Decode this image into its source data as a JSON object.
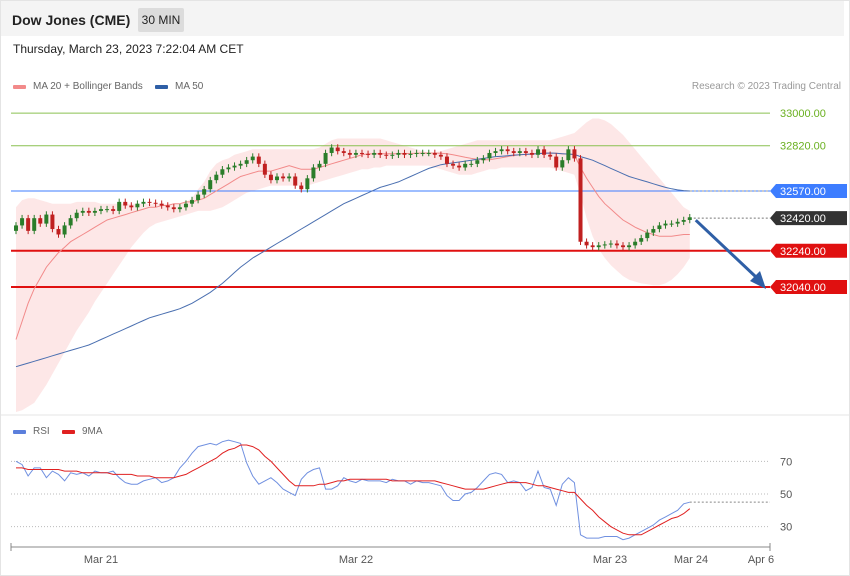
{
  "header": {
    "title": "Dow Jones (CME)",
    "timeframe": "30 MIN",
    "datetime": "Thursday, March 23, 2023 7:22:04 AM CET"
  },
  "credit": "Research © 2023 Trading Central",
  "legend": {
    "main": [
      {
        "label": "MA 20 + Bollinger Bands",
        "color": "#f28a8a"
      },
      {
        "label": "MA 50",
        "color": "#2f5fa6"
      }
    ],
    "rsi": [
      {
        "label": "RSI",
        "color": "#5b7fdc"
      },
      {
        "label": "9MA",
        "color": "#e02020"
      }
    ]
  },
  "colors": {
    "up": "#2a7d2a",
    "down": "#c02020",
    "band": "#fde3e3",
    "ma20": "#f28a8a",
    "ma50": "#4a6fb0",
    "support": "#e01010",
    "pivot": "#3d7dff",
    "target": "#8ac050",
    "rsi": "#7090e0",
    "rsi_ma": "#e02020"
  },
  "chart_data": [
    {
      "type": "line",
      "title": "",
      "x_labels": [
        "Mar 21",
        "Mar 22",
        "Mar 23",
        "Mar 24",
        "Apr 6"
      ],
      "ylim": [
        31350,
        33100
      ],
      "levels": [
        {
          "value": 33000,
          "label": "33000.00",
          "kind": "target"
        },
        {
          "value": 32820,
          "label": "32820.00",
          "kind": "target"
        },
        {
          "value": 32570,
          "label": "32570.00",
          "kind": "pivot"
        },
        {
          "value": 32420,
          "label": "32420.00",
          "kind": "last"
        },
        {
          "value": 32240,
          "label": "32240.00",
          "kind": "support"
        },
        {
          "value": 32040,
          "label": "32040.00",
          "kind": "support"
        }
      ],
      "last_price": 32420,
      "forecast_arrow": {
        "from": 32420,
        "to": 32040
      },
      "closes": [
        32380,
        32420,
        32350,
        32420,
        32390,
        32440,
        32360,
        32330,
        32380,
        32420,
        32450,
        32460,
        32450,
        32460,
        32470,
        32470,
        32460,
        32510,
        32490,
        32480,
        32500,
        32510,
        32505,
        32500,
        32490,
        32480,
        32470,
        32480,
        32500,
        32520,
        32550,
        32580,
        32630,
        32660,
        32690,
        32700,
        32710,
        32720,
        32740,
        32760,
        32720,
        32660,
        32630,
        32650,
        32640,
        32650,
        32600,
        32580,
        32640,
        32700,
        32720,
        32780,
        32810,
        32790,
        32780,
        32770,
        32780,
        32775,
        32770,
        32780,
        32770,
        32765,
        32770,
        32780,
        32770,
        32775,
        32780,
        32780,
        32780,
        32770,
        32760,
        32720,
        32710,
        32700,
        32720,
        32720,
        32740,
        32750,
        32780,
        32790,
        32800,
        32790,
        32780,
        32790,
        32780,
        32770,
        32800,
        32770,
        32760,
        32700,
        32740,
        32800,
        32750,
        32290,
        32270,
        32260,
        32270,
        32275,
        32280,
        32270,
        32260,
        32270,
        32290,
        32310,
        32340,
        32360,
        32380,
        32390,
        32390,
        32400,
        32410,
        32425
      ],
      "ma20": [
        31750,
        31850,
        31950,
        32030,
        32090,
        32150,
        32190,
        32230,
        32260,
        32290,
        32310,
        32330,
        32350,
        32370,
        32390,
        32410,
        32420,
        32430,
        32440,
        32450,
        32460,
        32470,
        32480,
        32480,
        32490,
        32490,
        32500,
        32500,
        32510,
        32510,
        32520,
        32530,
        32550,
        32570,
        32590,
        32610,
        32630,
        32650,
        32660,
        32670,
        32680,
        32680,
        32680,
        32690,
        32700,
        32710,
        32700,
        32690,
        32690,
        32690,
        32700,
        32710,
        32720,
        32730,
        32740,
        32750,
        32760,
        32770,
        32775,
        32775,
        32776,
        32776,
        32776,
        32776,
        32777,
        32777,
        32778,
        32779,
        32780,
        32779,
        32778,
        32776,
        32770,
        32763,
        32756,
        32750,
        32745,
        32742,
        32743,
        32748,
        32754,
        32760,
        32766,
        32770,
        32773,
        32776,
        32778,
        32779,
        32778,
        32778,
        32775,
        32775,
        32770,
        32700,
        32640,
        32590,
        32540,
        32500,
        32470,
        32440,
        32410,
        32390,
        32370,
        32355,
        32340,
        32330,
        32320,
        32320,
        32320,
        32325,
        32330,
        32330
      ],
      "ma50": [
        31600,
        31610,
        31620,
        31630,
        31640,
        31650,
        31660,
        31670,
        31680,
        31690,
        31700,
        31710,
        31720,
        31735,
        31750,
        31765,
        31780,
        31795,
        31810,
        31825,
        31840,
        31855,
        31870,
        31880,
        31890,
        31900,
        31910,
        31920,
        31935,
        31950,
        31970,
        31990,
        32010,
        32035,
        32060,
        32090,
        32120,
        32150,
        32175,
        32200,
        32220,
        32240,
        32260,
        32280,
        32300,
        32320,
        32340,
        32360,
        32380,
        32400,
        32420,
        32440,
        32460,
        32480,
        32500,
        32515,
        32530,
        32545,
        32560,
        32575,
        32590,
        32600,
        32610,
        32620,
        32635,
        32650,
        32665,
        32680,
        32695,
        32705,
        32715,
        32720,
        32725,
        32730,
        32735,
        32740,
        32745,
        32750,
        32755,
        32760,
        32762,
        32765,
        32768,
        32770,
        32772,
        32774,
        32776,
        32778,
        32780,
        32778,
        32776,
        32774,
        32772,
        32760,
        32750,
        32740,
        32725,
        32710,
        32695,
        32680,
        32665,
        32650,
        32640,
        32630,
        32620,
        32610,
        32600,
        32590,
        32582,
        32576,
        32572,
        32570
      ],
      "bb_upper": [
        32480,
        32520,
        32530,
        32530,
        32520,
        32510,
        32500,
        32500,
        32500,
        32500,
        32510,
        32510,
        32510,
        32510,
        32500,
        32500,
        32500,
        32500,
        32500,
        32500,
        32500,
        32500,
        32500,
        32500,
        32500,
        32500,
        32500,
        32500,
        32510,
        32530,
        32580,
        32620,
        32680,
        32720,
        32740,
        32750,
        32770,
        32780,
        32790,
        32800,
        32800,
        32800,
        32800,
        32800,
        32800,
        32800,
        32800,
        32800,
        32800,
        32800,
        32810,
        32830,
        32850,
        32860,
        32860,
        32860,
        32860,
        32860,
        32860,
        32860,
        32860,
        32850,
        32840,
        32830,
        32820,
        32810,
        32800,
        32790,
        32780,
        32785,
        32790,
        32800,
        32810,
        32820,
        32830,
        32840,
        32850,
        32850,
        32850,
        32850,
        32850,
        32850,
        32850,
        32850,
        32850,
        32850,
        32850,
        32850,
        32850,
        32860,
        32870,
        32880,
        32890,
        32920,
        32950,
        32970,
        32970,
        32960,
        32940,
        32910,
        32880,
        32840,
        32800,
        32760,
        32720,
        32680,
        32640,
        32600,
        32560,
        32520,
        32480,
        32460
      ],
      "bb_lower": [
        31350,
        31360,
        31380,
        31400,
        31450,
        31500,
        31560,
        31620,
        31680,
        31740,
        31800,
        31850,
        31900,
        31960,
        32010,
        32060,
        32110,
        32160,
        32210,
        32260,
        32300,
        32340,
        32370,
        32390,
        32400,
        32410,
        32420,
        32430,
        32440,
        32450,
        32460,
        32460,
        32460,
        32470,
        32480,
        32500,
        32520,
        32540,
        32560,
        32570,
        32580,
        32590,
        32600,
        32600,
        32600,
        32600,
        32600,
        32600,
        32600,
        32610,
        32620,
        32630,
        32640,
        32650,
        32660,
        32670,
        32680,
        32690,
        32690,
        32700,
        32700,
        32710,
        32710,
        32710,
        32710,
        32710,
        32710,
        32710,
        32710,
        32700,
        32690,
        32680,
        32670,
        32660,
        32660,
        32660,
        32670,
        32680,
        32690,
        32690,
        32700,
        32700,
        32700,
        32700,
        32700,
        32700,
        32700,
        32700,
        32700,
        32690,
        32680,
        32670,
        32660,
        32550,
        32420,
        32320,
        32250,
        32200,
        32160,
        32130,
        32100,
        32080,
        32070,
        32060,
        32055,
        32050,
        32050,
        32060,
        32080,
        32110,
        32150,
        32200
      ]
    },
    {
      "type": "line",
      "title": "",
      "ylim": [
        20,
        80
      ],
      "yticks": [
        30,
        50,
        70
      ],
      "ytick_labels": [
        "30",
        "50",
        "70"
      ],
      "series": [
        {
          "name": "RSI",
          "values": [
            70,
            68,
            61,
            66,
            66,
            60,
            64,
            62,
            58,
            63,
            62,
            63,
            61,
            64,
            63,
            63,
            64,
            60,
            57,
            56,
            56,
            58,
            59,
            60,
            57,
            58,
            60,
            66,
            70,
            75,
            79,
            80,
            81,
            80,
            82,
            83,
            82,
            81,
            69,
            61,
            56,
            58,
            60,
            57,
            53,
            51,
            49,
            59,
            63,
            65,
            66,
            53,
            53,
            55,
            60,
            58,
            57,
            59,
            58,
            58,
            58,
            57,
            59,
            58,
            58,
            56,
            58,
            57,
            57,
            56,
            55,
            49,
            46,
            46,
            50,
            51,
            54,
            58,
            62,
            63,
            62,
            57,
            58,
            57,
            52,
            54,
            64,
            54,
            53,
            43,
            56,
            60,
            57,
            25,
            23,
            23,
            23,
            24,
            24,
            24,
            22,
            23,
            25,
            27,
            29,
            31,
            34,
            36,
            38,
            40,
            44,
            45
          ]
        },
        {
          "name": "9MA",
          "values": [
            66,
            66,
            65,
            65,
            65,
            65,
            65,
            65,
            64,
            64,
            64,
            63,
            63,
            63,
            63,
            63,
            62,
            62,
            62,
            62,
            61,
            61,
            61,
            60,
            60,
            60,
            60,
            61,
            62,
            64,
            66,
            68,
            70,
            72,
            75,
            77,
            78,
            80,
            80,
            79,
            77,
            73,
            70,
            66,
            62,
            58,
            55,
            55,
            55,
            55,
            56,
            56,
            57,
            58,
            58,
            59,
            59,
            59,
            59,
            59,
            59,
            59,
            58,
            58,
            58,
            58,
            58,
            58,
            58,
            58,
            57,
            56,
            55,
            54,
            53,
            53,
            53,
            53,
            54,
            55,
            56,
            57,
            57,
            57,
            57,
            56,
            55,
            55,
            54,
            53,
            52,
            51,
            51,
            47,
            43,
            40,
            36,
            33,
            30,
            28,
            26,
            25,
            25,
            25,
            27,
            29,
            31,
            33,
            35,
            36,
            38,
            41
          ]
        }
      ]
    }
  ]
}
